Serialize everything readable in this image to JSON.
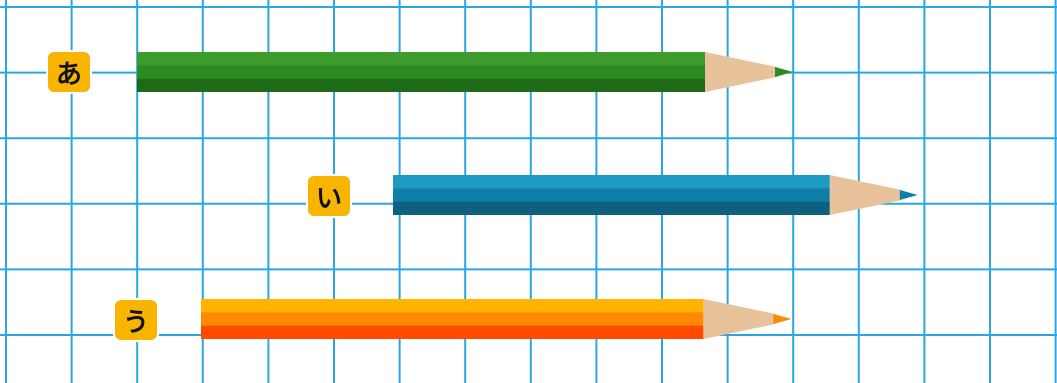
{
  "grid": {
    "line_color": "#2AA6E0",
    "background": "#ffffff"
  },
  "badge_color": "#F7B500",
  "pencils": [
    {
      "label": "あ",
      "length_units": 10,
      "colors": {
        "top": "#3E9B2E",
        "mid": "#2B8A23",
        "bottom": "#1E6B17",
        "tip": "#2B8A23"
      }
    },
    {
      "label": "い",
      "length_units": 8,
      "colors": {
        "top": "#1C9AC2",
        "mid": "#107FA7",
        "bottom": "#0E5F80",
        "tip": "#107FA7"
      }
    },
    {
      "label": "う",
      "length_units": 9,
      "colors": {
        "top": "#FFB400",
        "mid": "#FF8A00",
        "bottom": "#FF4A00",
        "tip": "#FF8A00"
      }
    }
  ]
}
